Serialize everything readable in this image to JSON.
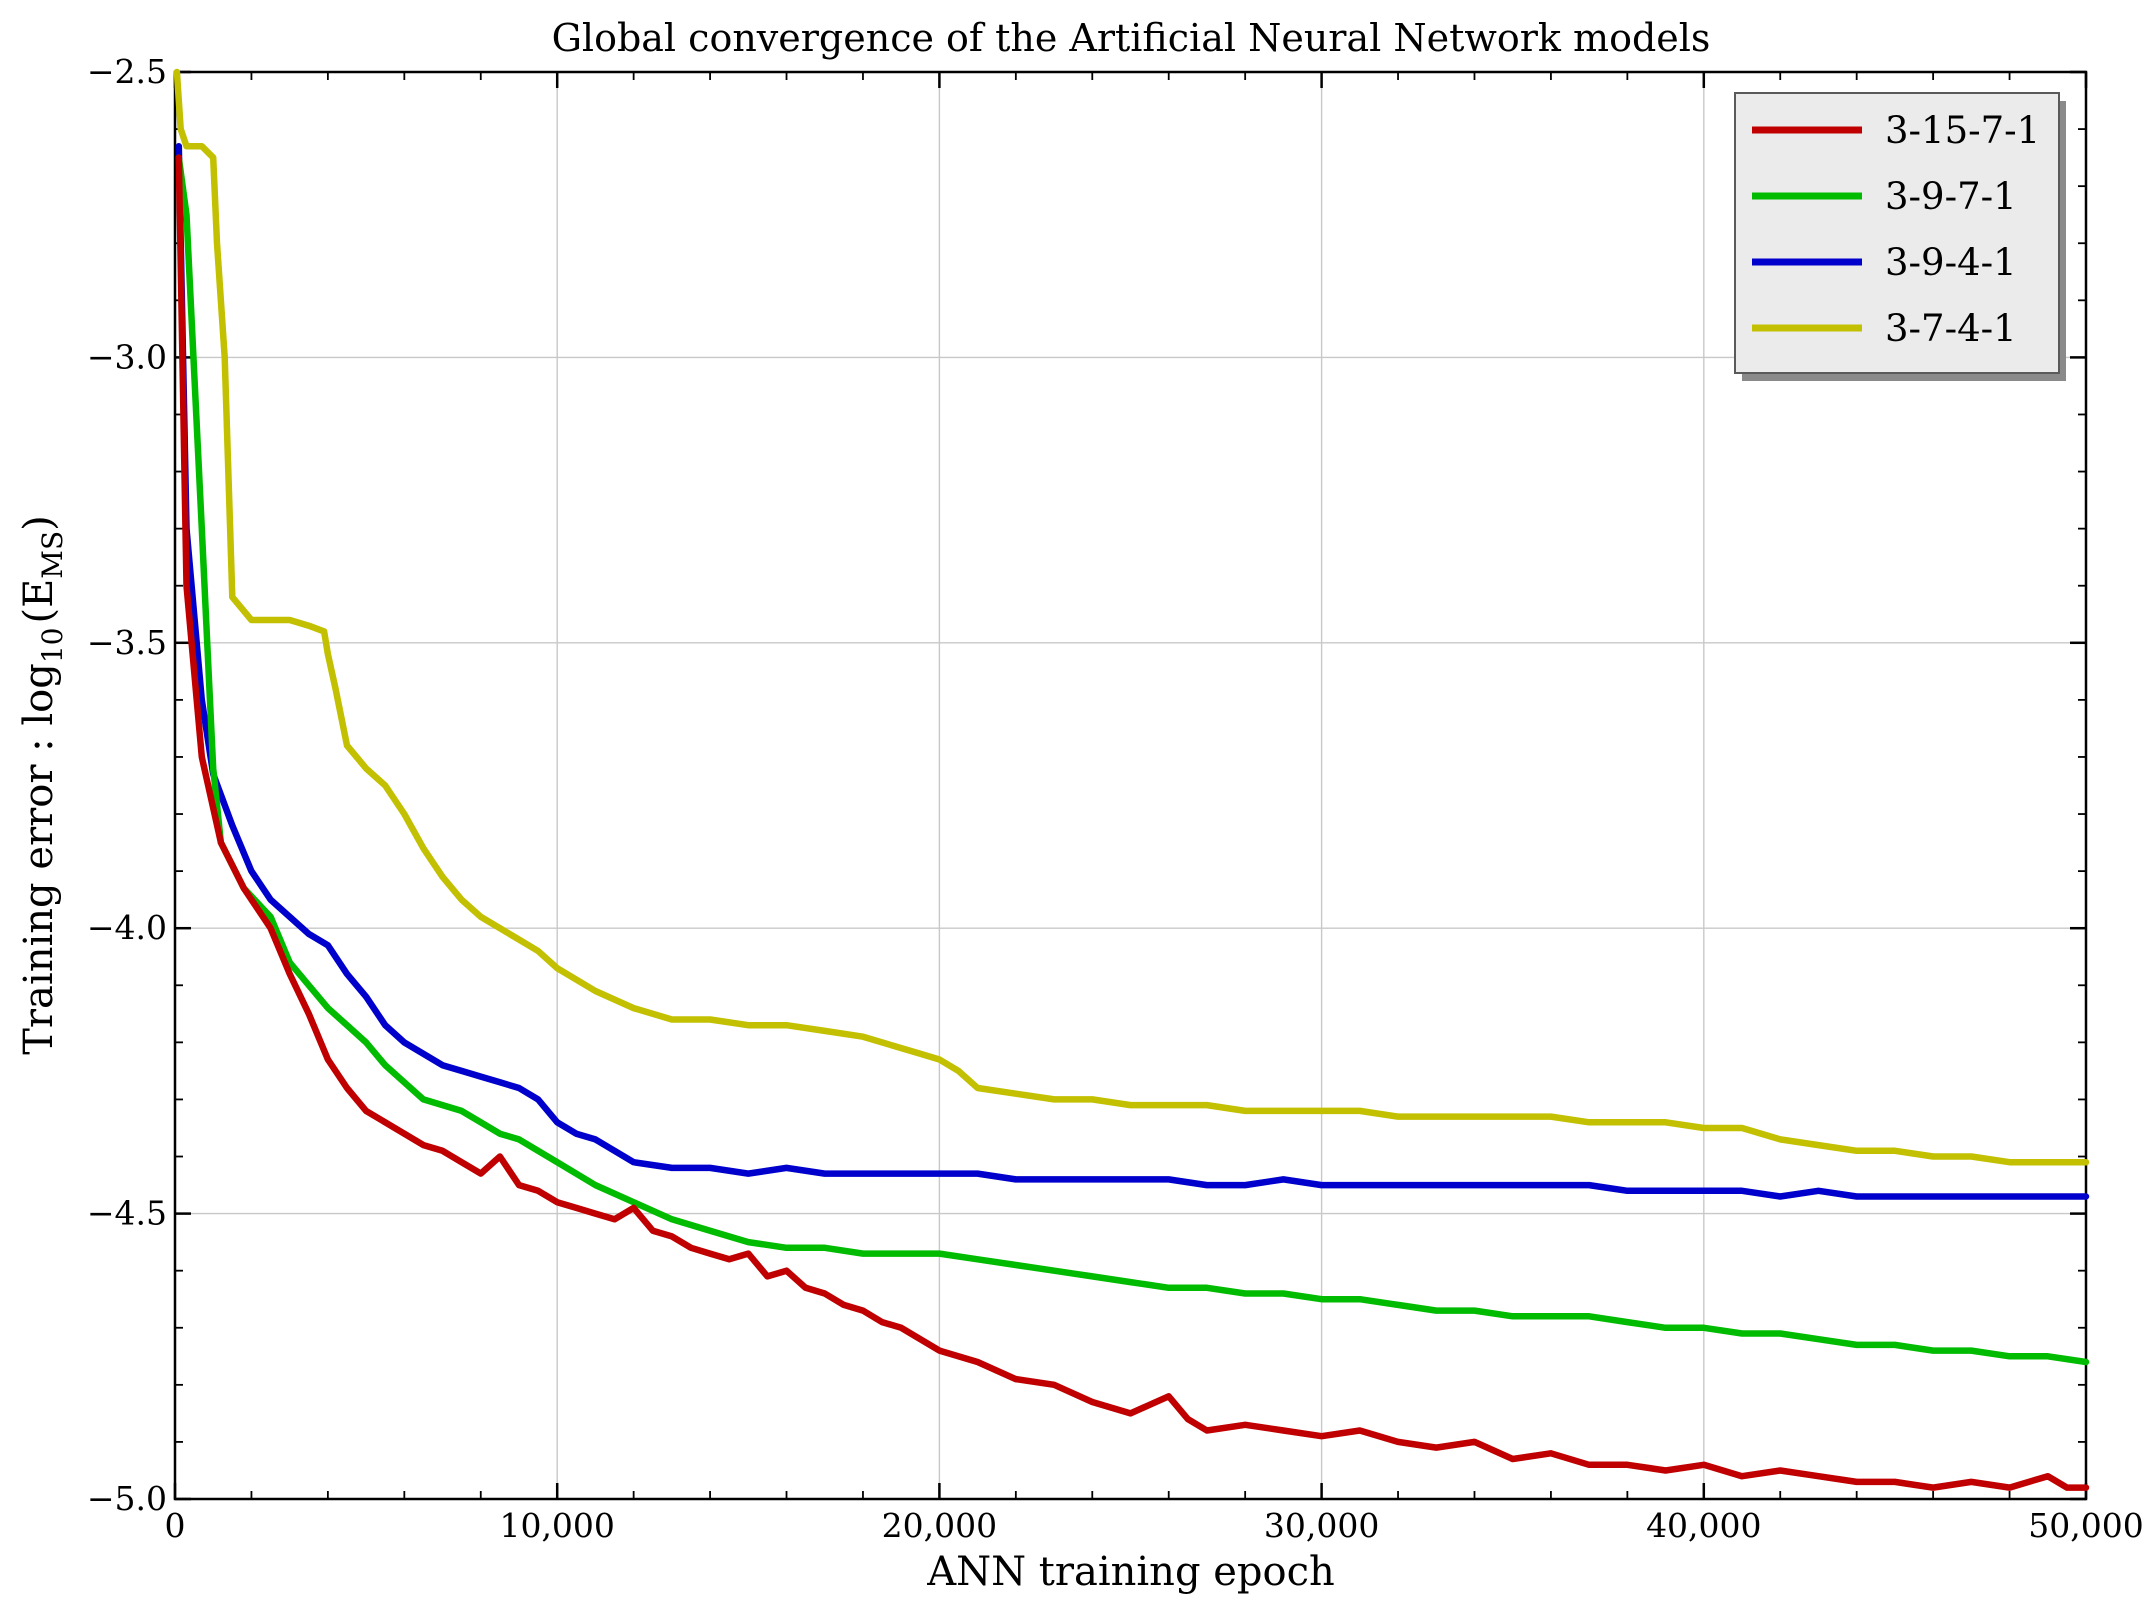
{
  "chart_data": {
    "type": "line",
    "title": "Global convergence of the Artificial Neural Network models",
    "xlabel": "ANN training epoch",
    "ylabel_prefix": "Training error : log",
    "ylabel_sub": "10",
    "ylabel_paren_open": "(E",
    "ylabel_sub2": "MS",
    "ylabel_paren_close": ")",
    "xlim": [
      0,
      50000
    ],
    "ylim": [
      -5.0,
      -2.5
    ],
    "xticks": [
      0,
      10000,
      20000,
      30000,
      40000,
      50000
    ],
    "xtick_labels": [
      "0",
      "10,000",
      "20,000",
      "30,000",
      "40,000",
      "50,000"
    ],
    "yticks": [
      -5.0,
      -4.5,
      -4.0,
      -3.5,
      -3.0,
      -2.5
    ],
    "ytick_labels": [
      "−5.0",
      "−4.5",
      "−4.0",
      "−3.5",
      "−3.0",
      "−2.5"
    ],
    "grid": true,
    "legend_position": "top-right",
    "series": [
      {
        "name": "3-15-7-1",
        "color": "#c00000",
        "x": [
          100,
          300,
          700,
          1200,
          1800,
          2500,
          3000,
          3500,
          4000,
          4500,
          5000,
          5500,
          6000,
          6500,
          7000,
          7500,
          8000,
          8500,
          9000,
          9500,
          10000,
          10500,
          11000,
          11500,
          12000,
          12500,
          13000,
          13500,
          14000,
          14500,
          15000,
          15500,
          16000,
          16500,
          17000,
          17500,
          18000,
          18500,
          19000,
          19500,
          20000,
          21000,
          22000,
          23000,
          24000,
          25000,
          26000,
          26500,
          27000,
          28000,
          29000,
          30000,
          31000,
          32000,
          33000,
          34000,
          35000,
          36000,
          37000,
          38000,
          39000,
          40000,
          41000,
          42000,
          43000,
          44000,
          45000,
          46000,
          47000,
          48000,
          49000,
          49500,
          50000
        ],
        "values": [
          -2.65,
          -3.4,
          -3.7,
          -3.85,
          -3.93,
          -4.0,
          -4.08,
          -4.15,
          -4.23,
          -4.28,
          -4.32,
          -4.34,
          -4.36,
          -4.38,
          -4.39,
          -4.41,
          -4.43,
          -4.4,
          -4.45,
          -4.46,
          -4.48,
          -4.49,
          -4.5,
          -4.51,
          -4.49,
          -4.53,
          -4.54,
          -4.56,
          -4.57,
          -4.58,
          -4.57,
          -4.61,
          -4.6,
          -4.63,
          -4.64,
          -4.66,
          -4.67,
          -4.69,
          -4.7,
          -4.72,
          -4.74,
          -4.76,
          -4.79,
          -4.8,
          -4.83,
          -4.85,
          -4.82,
          -4.86,
          -4.88,
          -4.87,
          -4.88,
          -4.89,
          -4.88,
          -4.9,
          -4.91,
          -4.9,
          -4.93,
          -4.92,
          -4.94,
          -4.94,
          -4.95,
          -4.94,
          -4.96,
          -4.95,
          -4.96,
          -4.97,
          -4.97,
          -4.98,
          -4.97,
          -4.98,
          -4.96,
          -4.98,
          -4.98
        ]
      },
      {
        "name": "3-9-7-1",
        "color": "#00bb00",
        "x": [
          100,
          300,
          700,
          1000,
          1200,
          1800,
          2500,
          3000,
          3500,
          4000,
          4500,
          5000,
          5500,
          6000,
          6500,
          7000,
          7500,
          8000,
          8500,
          9000,
          9500,
          10000,
          11000,
          12000,
          13000,
          14000,
          15000,
          16000,
          17000,
          18000,
          19000,
          20000,
          21000,
          22000,
          23000,
          24000,
          25000,
          26000,
          27000,
          28000,
          29000,
          30000,
          31000,
          32000,
          33000,
          34000,
          35000,
          36000,
          37000,
          38000,
          39000,
          40000,
          41000,
          42000,
          43000,
          44000,
          45000,
          46000,
          47000,
          48000,
          49000,
          50000
        ],
        "values": [
          -2.65,
          -2.75,
          -3.3,
          -3.72,
          -3.85,
          -3.93,
          -3.98,
          -4.06,
          -4.1,
          -4.14,
          -4.17,
          -4.2,
          -4.24,
          -4.27,
          -4.3,
          -4.31,
          -4.32,
          -4.34,
          -4.36,
          -4.37,
          -4.39,
          -4.41,
          -4.45,
          -4.48,
          -4.51,
          -4.53,
          -4.55,
          -4.56,
          -4.56,
          -4.57,
          -4.57,
          -4.57,
          -4.58,
          -4.59,
          -4.6,
          -4.61,
          -4.62,
          -4.63,
          -4.63,
          -4.64,
          -4.64,
          -4.65,
          -4.65,
          -4.66,
          -4.67,
          -4.67,
          -4.68,
          -4.68,
          -4.68,
          -4.69,
          -4.7,
          -4.7,
          -4.71,
          -4.71,
          -4.72,
          -4.73,
          -4.73,
          -4.74,
          -4.74,
          -4.75,
          -4.75,
          -4.76
        ]
      },
      {
        "name": "3-9-4-1",
        "color": "#0000cc",
        "x": [
          100,
          300,
          700,
          1000,
          1500,
          2000,
          2500,
          3000,
          3500,
          4000,
          4500,
          5000,
          5500,
          6000,
          6500,
          7000,
          7500,
          8000,
          8500,
          9000,
          9500,
          10000,
          10500,
          11000,
          12000,
          13000,
          14000,
          15000,
          16000,
          17000,
          18000,
          19000,
          20000,
          21000,
          22000,
          23000,
          24000,
          25000,
          26000,
          27000,
          28000,
          29000,
          30000,
          31000,
          32000,
          33000,
          34000,
          35000,
          36000,
          37000,
          38000,
          39000,
          40000,
          41000,
          42000,
          43000,
          44000,
          45000,
          46000,
          47000,
          48000,
          49000,
          50000
        ],
        "values": [
          -2.63,
          -3.3,
          -3.6,
          -3.73,
          -3.82,
          -3.9,
          -3.95,
          -3.98,
          -4.01,
          -4.03,
          -4.08,
          -4.12,
          -4.17,
          -4.2,
          -4.22,
          -4.24,
          -4.25,
          -4.26,
          -4.27,
          -4.28,
          -4.3,
          -4.34,
          -4.36,
          -4.37,
          -4.41,
          -4.42,
          -4.42,
          -4.43,
          -4.42,
          -4.43,
          -4.43,
          -4.43,
          -4.43,
          -4.43,
          -4.44,
          -4.44,
          -4.44,
          -4.44,
          -4.44,
          -4.45,
          -4.45,
          -4.44,
          -4.45,
          -4.45,
          -4.45,
          -4.45,
          -4.45,
          -4.45,
          -4.45,
          -4.45,
          -4.46,
          -4.46,
          -4.46,
          -4.46,
          -4.47,
          -4.46,
          -4.47,
          -4.47,
          -4.47,
          -4.47,
          -4.47,
          -4.47,
          -4.47
        ]
      },
      {
        "name": "3-7-4-1",
        "color": "#c2c000",
        "x": [
          50,
          150,
          300,
          700,
          1000,
          1100,
          1300,
          1500,
          2000,
          2500,
          3000,
          3500,
          3900,
          4000,
          4200,
          4500,
          5000,
          5500,
          6000,
          6500,
          7000,
          7500,
          8000,
          8500,
          9000,
          9500,
          10000,
          11000,
          12000,
          13000,
          14000,
          15000,
          16000,
          17000,
          18000,
          19000,
          19500,
          20000,
          20500,
          21000,
          22000,
          23000,
          24000,
          25000,
          26000,
          27000,
          28000,
          29000,
          30000,
          31000,
          32000,
          33000,
          34000,
          35000,
          36000,
          37000,
          38000,
          39000,
          40000,
          41000,
          42000,
          43000,
          44000,
          45000,
          46000,
          47000,
          48000,
          49000,
          50000
        ],
        "values": [
          -2.5,
          -2.6,
          -2.63,
          -2.63,
          -2.65,
          -2.8,
          -3.0,
          -3.42,
          -3.46,
          -3.46,
          -3.46,
          -3.47,
          -3.48,
          -3.52,
          -3.58,
          -3.68,
          -3.72,
          -3.75,
          -3.8,
          -3.86,
          -3.91,
          -3.95,
          -3.98,
          -4.0,
          -4.02,
          -4.04,
          -4.07,
          -4.11,
          -4.14,
          -4.16,
          -4.16,
          -4.17,
          -4.17,
          -4.18,
          -4.19,
          -4.21,
          -4.22,
          -4.23,
          -4.25,
          -4.28,
          -4.29,
          -4.3,
          -4.3,
          -4.31,
          -4.31,
          -4.31,
          -4.32,
          -4.32,
          -4.32,
          -4.32,
          -4.33,
          -4.33,
          -4.33,
          -4.33,
          -4.33,
          -4.34,
          -4.34,
          -4.34,
          -4.35,
          -4.35,
          -4.37,
          -4.38,
          -4.39,
          -4.39,
          -4.4,
          -4.4,
          -4.41,
          -4.41,
          -4.41
        ]
      }
    ]
  }
}
